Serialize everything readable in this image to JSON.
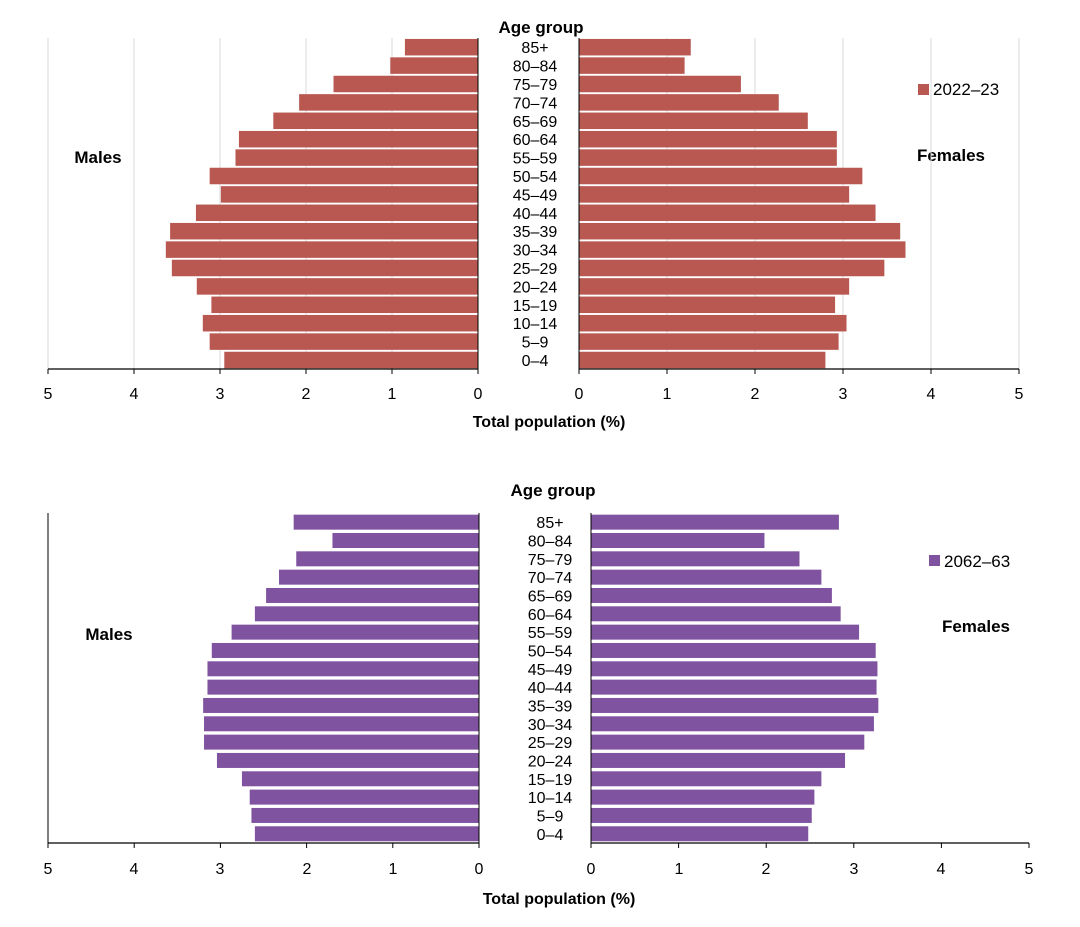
{
  "charts": [
    {
      "title": "Age group",
      "xlabel": "Total population (%)",
      "left_label": "Males",
      "right_label": "Females",
      "legend": "2022–23",
      "color": "#B85851",
      "ticks": [
        "0",
        "1",
        "2",
        "3",
        "4",
        "5"
      ],
      "left_ticks": [
        "5",
        "4",
        "3",
        "2",
        "1",
        "0"
      ]
    },
    {
      "title": "Age group",
      "xlabel": "Total  population (%)",
      "left_label": "Males",
      "right_label": "Females",
      "legend": "2062–63",
      "color": "#8053A0",
      "ticks": [
        "0",
        "1",
        "2",
        "3",
        "4",
        "5"
      ],
      "left_ticks": [
        "5",
        "4",
        "3",
        "2",
        "1",
        "0"
      ]
    }
  ],
  "chart_data": [
    {
      "type": "bar",
      "orientation": "horizontal-pyramid",
      "title": "Age group",
      "xlabel": "Total population (%)",
      "xlim": [
        0,
        5
      ],
      "grid": true,
      "legend_position": "top-right",
      "categories": [
        "85+",
        "80–84",
        "75–79",
        "70–74",
        "65–69",
        "60–64",
        "55–59",
        "50–54",
        "45–49",
        "40–44",
        "35–39",
        "30–34",
        "25–29",
        "20–24",
        "15–19",
        "10–14",
        "5–9",
        "0–4"
      ],
      "series": [
        {
          "name": "Males",
          "values": [
            0.85,
            1.02,
            1.68,
            2.08,
            2.38,
            2.78,
            2.82,
            3.12,
            2.99,
            3.28,
            3.58,
            3.63,
            3.56,
            3.27,
            3.1,
            3.2,
            3.12,
            2.95
          ]
        },
        {
          "name": "Females",
          "values": [
            1.27,
            1.2,
            1.84,
            2.27,
            2.6,
            2.93,
            2.93,
            3.22,
            3.07,
            3.37,
            3.65,
            3.71,
            3.47,
            3.07,
            2.91,
            3.04,
            2.95,
            2.8
          ]
        }
      ]
    },
    {
      "type": "bar",
      "orientation": "horizontal-pyramid",
      "title": "Age group",
      "xlabel": "Total  population (%)",
      "xlim": [
        0,
        5
      ],
      "grid": false,
      "legend_position": "top-right",
      "categories": [
        "85+",
        "80–84",
        "75–79",
        "70–74",
        "65–69",
        "60–64",
        "55–59",
        "50–54",
        "45–49",
        "40–44",
        "35–39",
        "30–34",
        "25–29",
        "20–24",
        "15–19",
        "10–14",
        "5–9",
        "0–4"
      ],
      "series": [
        {
          "name": "Males",
          "values": [
            2.15,
            1.7,
            2.12,
            2.32,
            2.47,
            2.6,
            2.87,
            3.1,
            3.15,
            3.15,
            3.2,
            3.19,
            3.19,
            3.04,
            2.75,
            2.66,
            2.64,
            2.6
          ]
        },
        {
          "name": "Females",
          "values": [
            2.83,
            1.98,
            2.38,
            2.63,
            2.75,
            2.85,
            3.06,
            3.25,
            3.27,
            3.26,
            3.28,
            3.23,
            3.12,
            2.9,
            2.63,
            2.55,
            2.52,
            2.48
          ]
        }
      ]
    }
  ]
}
